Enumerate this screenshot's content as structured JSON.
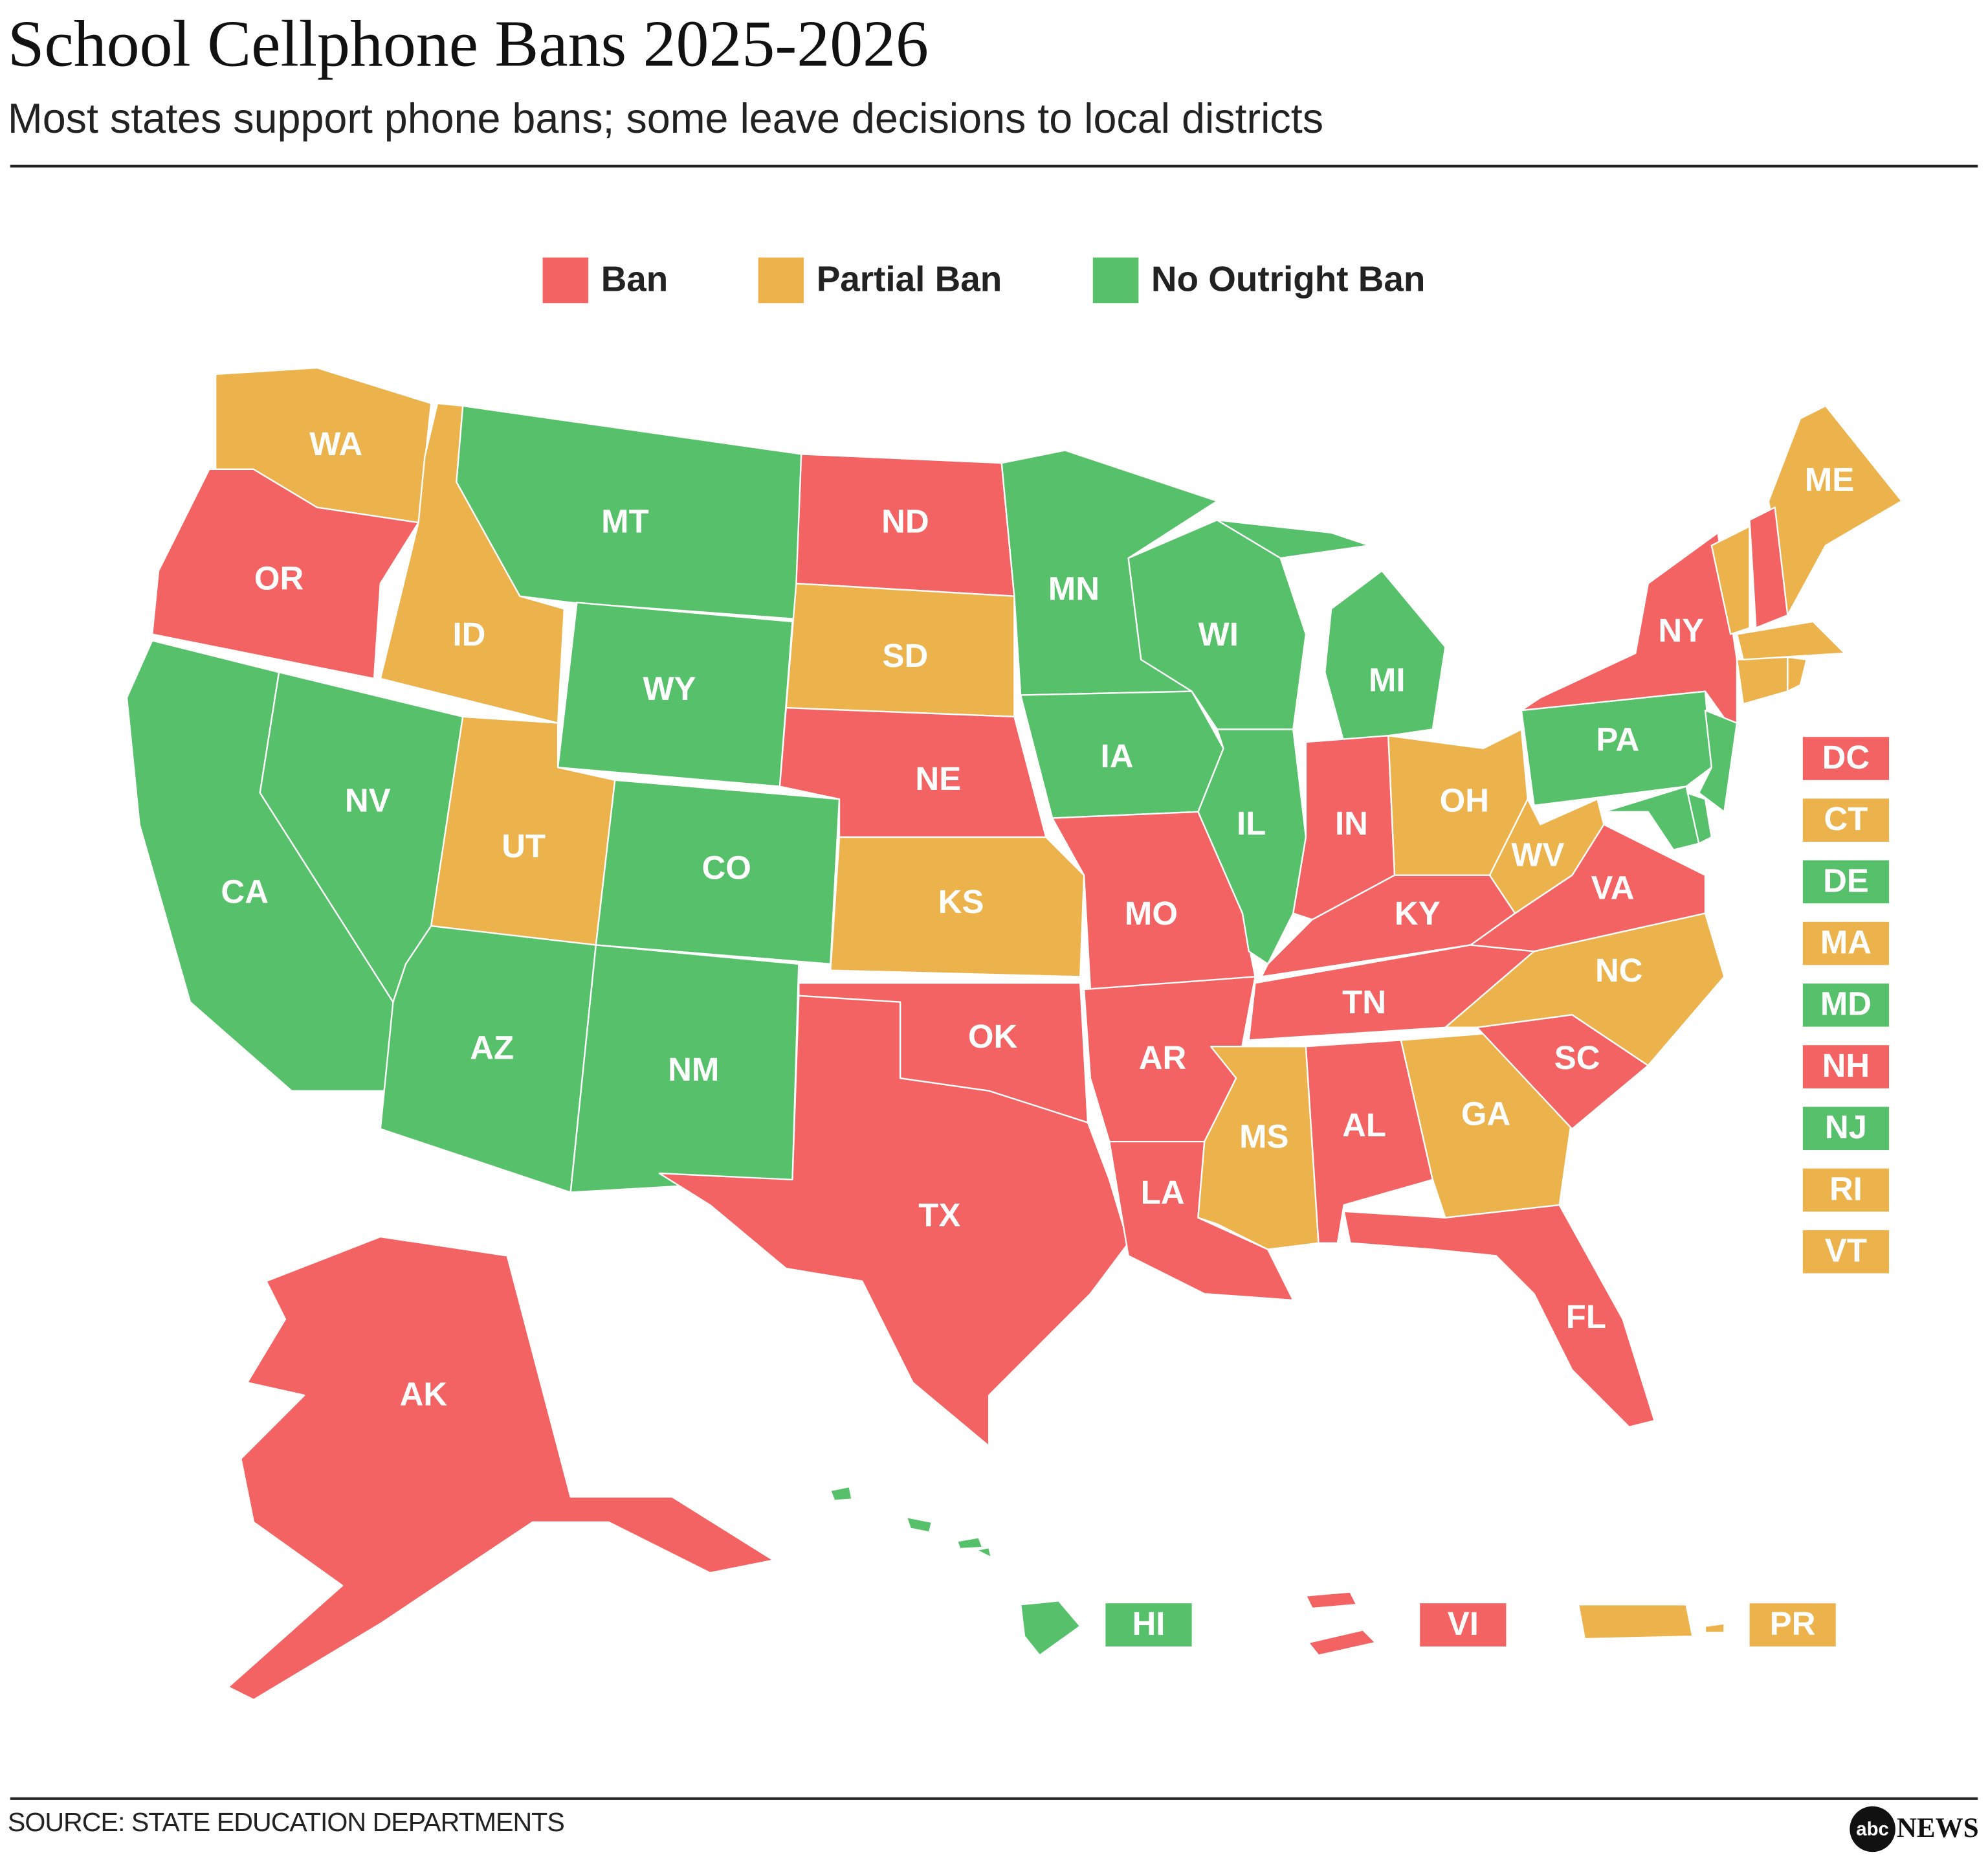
{
  "header": {
    "title": "School Cellphone Bans 2025-2026",
    "subtitle": "Most states support phone bans; some leave decisions to local districts"
  },
  "legend": [
    {
      "label": "Ban",
      "color": "#f46363"
    },
    {
      "label": "Partial Ban",
      "color": "#ecb24c"
    },
    {
      "label": "No Outright Ban",
      "color": "#56c16a"
    }
  ],
  "states": [
    {
      "label": "WA",
      "color": "#ecb24c"
    },
    {
      "label": "OR",
      "color": "#f46363"
    },
    {
      "label": "CA",
      "color": "#56c16a"
    },
    {
      "label": "NV",
      "color": "#56c16a"
    },
    {
      "label": "ID",
      "color": "#ecb24c"
    },
    {
      "label": "MT",
      "color": "#56c16a"
    },
    {
      "label": "WY",
      "color": "#56c16a"
    },
    {
      "label": "UT",
      "color": "#ecb24c"
    },
    {
      "label": "CO",
      "color": "#56c16a"
    },
    {
      "label": "AZ",
      "color": "#56c16a"
    },
    {
      "label": "NM",
      "color": "#56c16a"
    },
    {
      "label": "ND",
      "color": "#f46363"
    },
    {
      "label": "SD",
      "color": "#ecb24c"
    },
    {
      "label": "NE",
      "color": "#f46363"
    },
    {
      "label": "KS",
      "color": "#ecb24c"
    },
    {
      "label": "OK",
      "color": "#f46363"
    },
    {
      "label": "TX",
      "color": "#f46363"
    },
    {
      "label": "MN",
      "color": "#56c16a"
    },
    {
      "label": "IA",
      "color": "#56c16a"
    },
    {
      "label": "MO",
      "color": "#f46363"
    },
    {
      "label": "AR",
      "color": "#f46363"
    },
    {
      "label": "LA",
      "color": "#f46363"
    },
    {
      "label": "WI",
      "color": "#56c16a"
    },
    {
      "label": "IL",
      "color": "#56c16a"
    },
    {
      "label": "MI",
      "color": "#56c16a"
    },
    {
      "label": "IN",
      "color": "#f46363"
    },
    {
      "label": "OH",
      "color": "#ecb24c"
    },
    {
      "label": "KY",
      "color": "#f46363"
    },
    {
      "label": "TN",
      "color": "#f46363"
    },
    {
      "label": "MS",
      "color": "#ecb24c"
    },
    {
      "label": "AL",
      "color": "#f46363"
    },
    {
      "label": "GA",
      "color": "#ecb24c"
    },
    {
      "label": "FL",
      "color": "#f46363"
    },
    {
      "label": "SC",
      "color": "#f46363"
    },
    {
      "label": "NC",
      "color": "#ecb24c"
    },
    {
      "label": "VA",
      "color": "#f46363"
    },
    {
      "label": "WV",
      "color": "#ecb24c"
    },
    {
      "label": "PA",
      "color": "#56c16a"
    },
    {
      "label": "NY",
      "color": "#f46363"
    },
    {
      "label": "ME",
      "color": "#ecb24c"
    },
    {
      "label": "AK",
      "color": "#f46363"
    }
  ],
  "boxed": [
    {
      "label": "DC",
      "color": "#f46363"
    },
    {
      "label": "CT",
      "color": "#ecb24c"
    },
    {
      "label": "DE",
      "color": "#56c16a"
    },
    {
      "label": "MA",
      "color": "#ecb24c"
    },
    {
      "label": "MD",
      "color": "#56c16a"
    },
    {
      "label": "NH",
      "color": "#f46363"
    },
    {
      "label": "NJ",
      "color": "#56c16a"
    },
    {
      "label": "RI",
      "color": "#ecb24c"
    },
    {
      "label": "VT",
      "color": "#ecb24c"
    }
  ],
  "territories": [
    {
      "label": "HI",
      "color": "#56c16a"
    },
    {
      "label": "VI",
      "color": "#f46363"
    },
    {
      "label": "PR",
      "color": "#ecb24c"
    }
  ],
  "source": "SOURCE: STATE EDUCATION DEPARTMENTS",
  "logo": {
    "mark": "abc",
    "text": "NEWS"
  }
}
